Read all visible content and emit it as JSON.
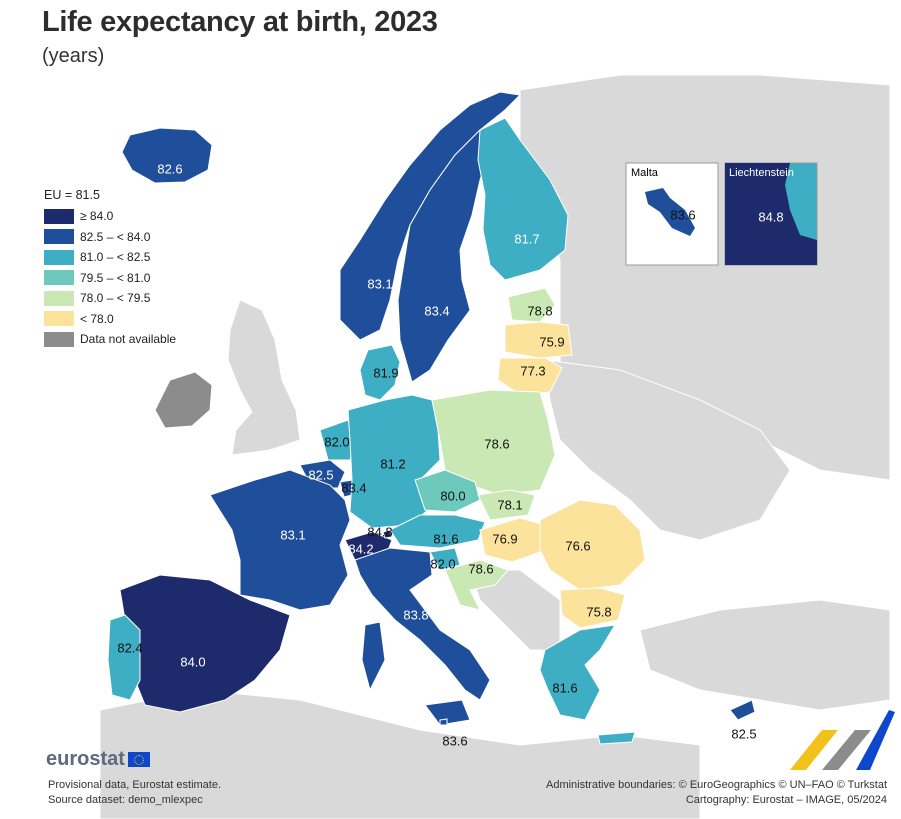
{
  "title": "Life expectancy at birth, 2023",
  "subtitle": "(years)",
  "legend": {
    "title": "EU = 81.5",
    "items": [
      {
        "label": "≥ 84.0",
        "color": "#1d2a6b"
      },
      {
        "label": "82.5 – < 84.0",
        "color": "#1f4f9a"
      },
      {
        "label": "81.0 – < 82.5",
        "color": "#3eaec4"
      },
      {
        "label": "79.5 – < 81.0",
        "color": "#6cc9bc"
      },
      {
        "label": "78.0 – < 79.5",
        "color": "#c9e8b4"
      },
      {
        "label": "< 78.0",
        "color": "#fbe39b"
      },
      {
        "label": "Data not available",
        "color": "#8c8c8c"
      }
    ]
  },
  "values": {
    "iceland": "82.6",
    "norway": "83.1",
    "sweden": "83.4",
    "finland": "81.7",
    "estonia": "78.8",
    "latvia": "75.9",
    "lithuania": "77.3",
    "denmark": "81.9",
    "netherlands": "82.0",
    "belgium": "82.5",
    "luxembourg": "83.4",
    "germany": "81.2",
    "poland": "78.6",
    "czechia": "80.0",
    "slovakia": "78.1",
    "austria": "81.6",
    "hungary": "76.9",
    "romania": "76.6",
    "bulgaria": "75.8",
    "slovenia": "82.0",
    "croatia": "78.6",
    "france": "83.1",
    "liechtenstein_main": "84.8",
    "switzerland": "84.2",
    "italy": "83.8",
    "spain": "84.0",
    "portugal": "82.4",
    "greece": "81.6",
    "malta_main": "83.6",
    "cyprus": "82.5"
  },
  "insets": {
    "malta": {
      "label": "Malta",
      "value": "83.6"
    },
    "liechtenstein": {
      "label": "Liechtenstein",
      "value": "84.8"
    }
  },
  "colors": {
    "background_country": "#d9d9d9",
    "sea": "#ffffff",
    "border": "#ffffff"
  },
  "branding": {
    "logo": "eurostat"
  },
  "notes": {
    "left1": "Provisional data, Eurostat estimate.",
    "left2": "Source dataset: demo_mlexpec",
    "right1": "Administrative boundaries: © EuroGeographics © UN–FAO © Turkstat",
    "right2": "Cartography: Eurostat – IMAGE, 05/2024"
  }
}
